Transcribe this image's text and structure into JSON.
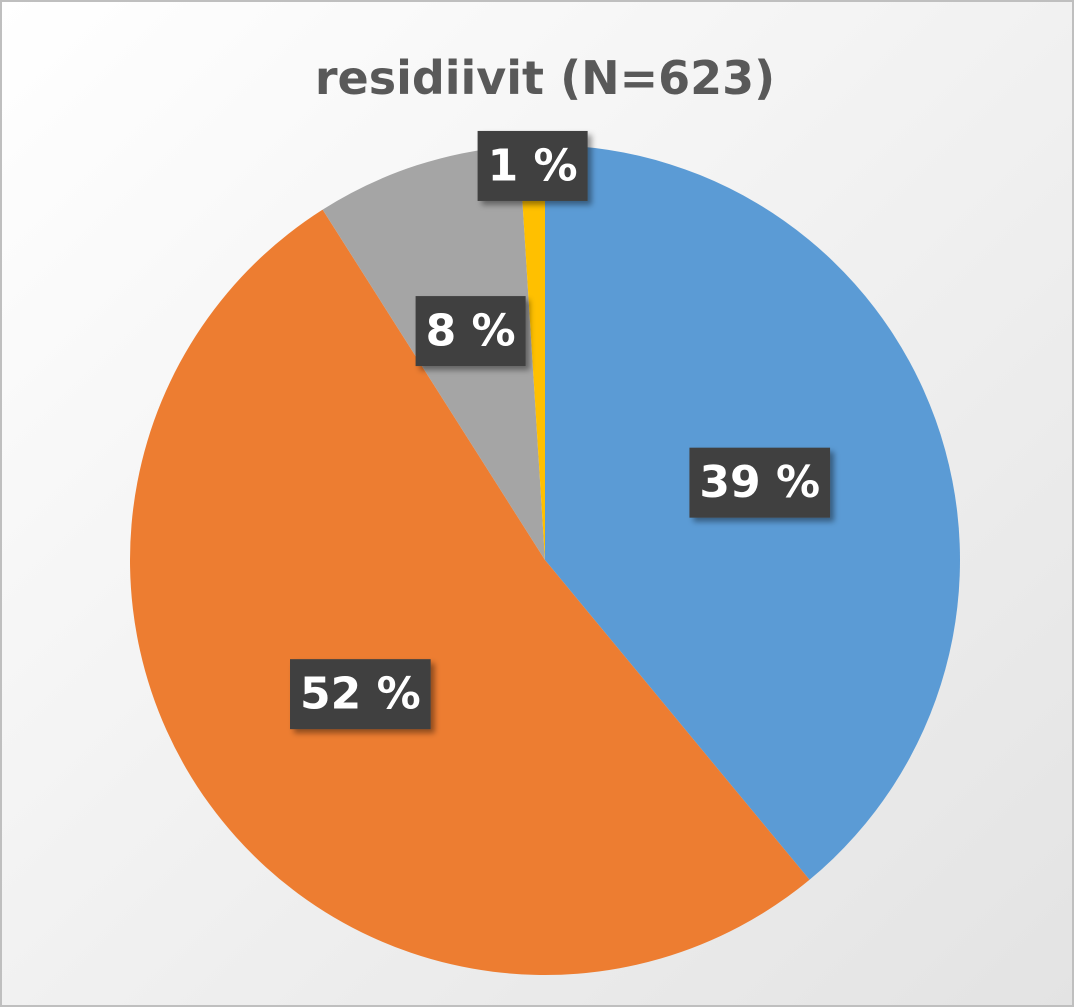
{
  "chart_data": {
    "type": "pie",
    "title": "residiivit (N=623)",
    "values": [
      39,
      52,
      8,
      1
    ],
    "value_labels": [
      "39 %",
      "52 %",
      "8 %",
      "1 %"
    ],
    "colors": [
      "#5b9bd5",
      "#ed7d31",
      "#a5a5a5",
      "#ffc000"
    ]
  }
}
